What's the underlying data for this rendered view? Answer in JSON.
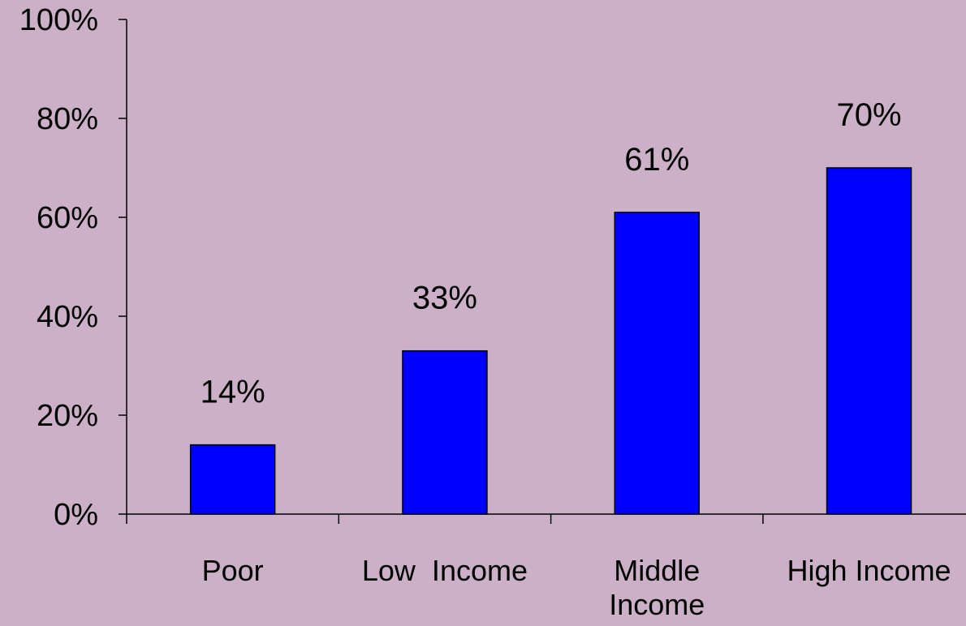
{
  "chart_data": {
    "type": "bar",
    "title": "",
    "xlabel": "",
    "ylabel": "",
    "categories": [
      "Poor",
      "Low  Income",
      "Middle Income",
      "High Income"
    ],
    "category_lines": [
      [
        "Poor"
      ],
      [
        "Low  Income"
      ],
      [
        "Middle",
        "Income"
      ],
      [
        "High Income"
      ]
    ],
    "values": [
      14,
      33,
      61,
      70
    ],
    "data_labels": [
      "14%",
      "33%",
      "61%",
      "70%"
    ],
    "ylim": [
      0,
      100
    ],
    "yticks": [
      0,
      20,
      40,
      60,
      80,
      100
    ],
    "ytick_labels": [
      "0%",
      "20%",
      "40%",
      "60%",
      "80%",
      "100%"
    ],
    "grid": false,
    "legend": "none",
    "colors": {
      "bar": "#0000FF",
      "background": "#CBB0C8"
    }
  }
}
